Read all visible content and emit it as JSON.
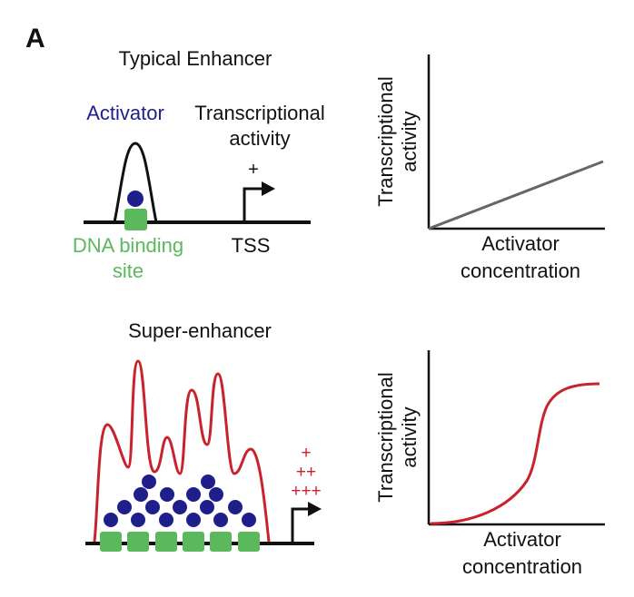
{
  "panel_label": "A",
  "colors": {
    "activator": "#1f1f8c",
    "binding_site": "#5cb85c",
    "super_enhancer": "#c8232c",
    "typical_curve": "#666666",
    "text": "#111111"
  },
  "typical": {
    "title": "Typical Enhancer",
    "activator_label": "Activator",
    "tx_label_line1": "Transcriptional",
    "tx_label_line2": "activity",
    "plus": "+",
    "binding_label_line1": "DNA binding",
    "binding_label_line2": "site",
    "tss_label": "TSS"
  },
  "super": {
    "title": "Super-enhancer",
    "plus1": "+",
    "plus2": "++",
    "plus3": "+++"
  },
  "plot_top": {
    "ylabel_line1": "Transcriptional",
    "ylabel_line2": "activity",
    "xlabel_line1": "Activator",
    "xlabel_line2": "concentration"
  },
  "plot_bottom": {
    "ylabel_line1": "Transcriptional",
    "ylabel_line2": "activity",
    "xlabel_line1": "Activator",
    "xlabel_line2": "concentration"
  }
}
